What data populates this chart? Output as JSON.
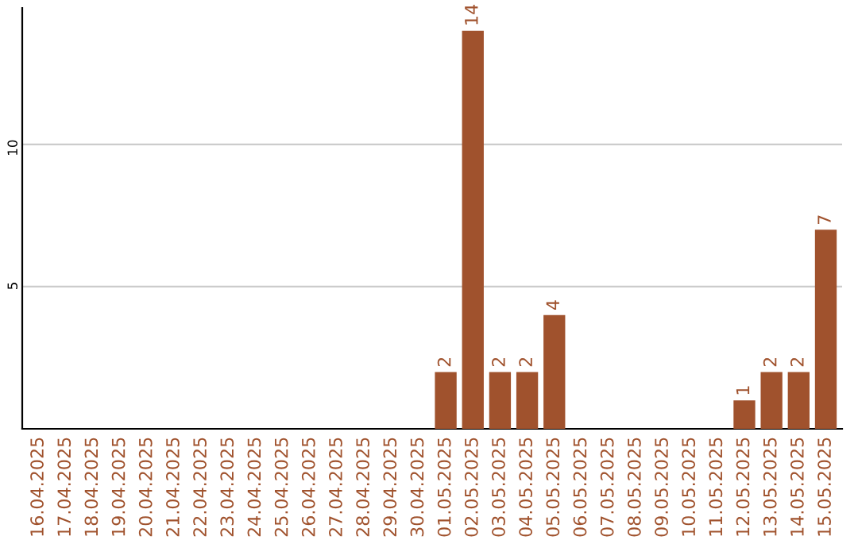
{
  "chart_data": {
    "type": "bar",
    "categories": [
      "16.04.2025",
      "17.04.2025",
      "18.04.2025",
      "19.04.2025",
      "20.04.2025",
      "21.04.2025",
      "22.04.2025",
      "23.04.2025",
      "24.04.2025",
      "25.04.2025",
      "26.04.2025",
      "27.04.2025",
      "28.04.2025",
      "29.04.2025",
      "30.04.2025",
      "01.05.2025",
      "02.05.2025",
      "03.05.2025",
      "04.05.2025",
      "05.05.2025",
      "06.05.2025",
      "07.05.2025",
      "08.05.2025",
      "09.05.2025",
      "10.05.2025",
      "11.05.2025",
      "12.05.2025",
      "13.05.2025",
      "14.05.2025",
      "15.05.2025"
    ],
    "values": [
      0,
      0,
      0,
      0,
      0,
      0,
      0,
      0,
      0,
      0,
      0,
      0,
      0,
      0,
      0,
      2,
      14,
      2,
      2,
      4,
      0,
      0,
      0,
      0,
      0,
      0,
      1,
      2,
      2,
      7
    ],
    "value_labels": [
      null,
      null,
      null,
      null,
      null,
      null,
      null,
      null,
      null,
      null,
      null,
      null,
      null,
      null,
      null,
      "2",
      "14",
      "2",
      "2",
      "4",
      null,
      null,
      null,
      null,
      null,
      null,
      "1",
      "2",
      "2",
      "7"
    ],
    "color": "#a0522d",
    "ylim": [
      0,
      14.8
    ],
    "yticks": [
      5,
      10
    ],
    "grid": "y"
  }
}
